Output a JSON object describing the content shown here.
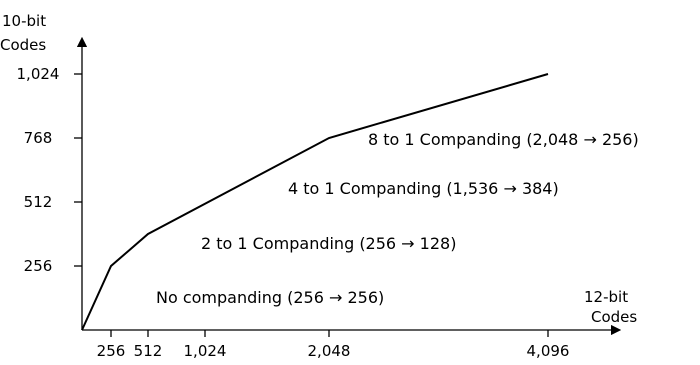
{
  "chart_data": {
    "type": "line",
    "ylabel_line1": "10-bit",
    "ylabel_line2": "Codes",
    "xlabel_line1": "12-bit",
    "xlabel_line2": "Codes",
    "x_ticks": [
      {
        "value": 256,
        "label": "256"
      },
      {
        "value": 512,
        "label": "512"
      },
      {
        "value": 1024,
        "label": "1,024"
      },
      {
        "value": 2048,
        "label": "2,048"
      },
      {
        "value": 4096,
        "label": "4,096"
      }
    ],
    "y_ticks": [
      {
        "value": 256,
        "label": "256"
      },
      {
        "value": 512,
        "label": "512"
      },
      {
        "value": 768,
        "label": "768"
      },
      {
        "value": 1024,
        "label": "1,024"
      }
    ],
    "xlim": [
      0,
      4096
    ],
    "ylim": [
      0,
      1024
    ],
    "series": [
      {
        "points": [
          {
            "x": 0,
            "y": 0
          },
          {
            "x": 256,
            "y": 256
          },
          {
            "x": 512,
            "y": 384
          },
          {
            "x": 2048,
            "y": 768
          },
          {
            "x": 4096,
            "y": 1024
          }
        ]
      }
    ],
    "annotations": [
      {
        "text": "8 to 1  Companding (2,048 → 256)",
        "x": 2048,
        "y": 720
      },
      {
        "text": "4 to 1 Companding (1,536 → 384)",
        "x": 1300,
        "y": 530
      },
      {
        "text": "2 to 1  Companding (256 → 128)",
        "x": 850,
        "y": 285
      },
      {
        "text": "No companding (256 → 256)",
        "x": 520,
        "y": 115
      }
    ]
  }
}
